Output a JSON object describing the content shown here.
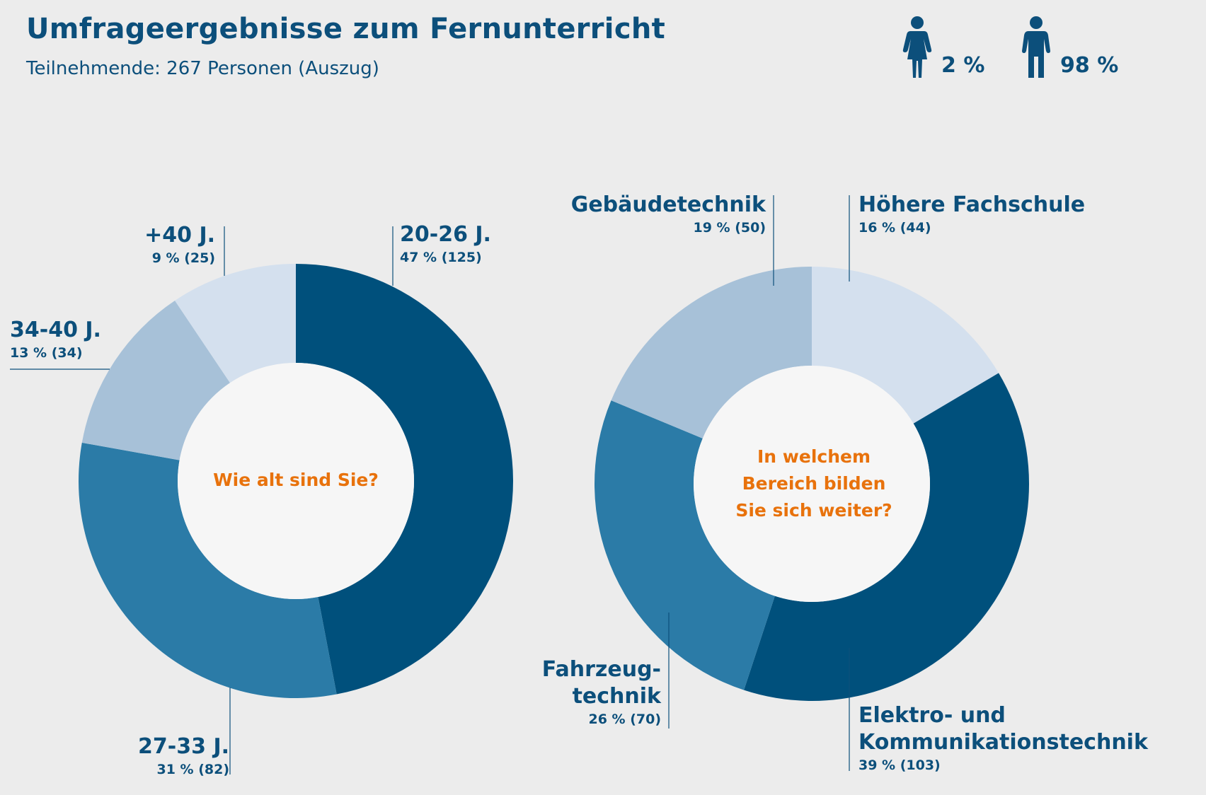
{
  "header": {
    "title": "Umfrageergebnisse zum Fernunterricht",
    "subtitle": "Teilnehmende: 267 Personen (Auszug)"
  },
  "gender": {
    "female": {
      "icon": "female-person-icon",
      "value": "2 %"
    },
    "male": {
      "icon": "male-person-icon",
      "value": "98 %"
    }
  },
  "colors": {
    "dark": "#00507c",
    "medium": "#2b7ba7",
    "light": "#a7c1d8",
    "lightest": "#d4e0ee",
    "center": "#f6f6f6",
    "accent": "#e8720c",
    "text": "#0c4f7b"
  },
  "chart_data": [
    {
      "type": "pie",
      "question": "Wie alt sind Sie?",
      "slices": [
        {
          "label": "20-26 J.",
          "percent": 47,
          "count": 125,
          "value_text": "47 % (125)"
        },
        {
          "label": "27-33 J.",
          "percent": 31,
          "count": 82,
          "value_text": "31 % (82)"
        },
        {
          "label": "34-40 J.",
          "percent": 13,
          "count": 34,
          "value_text": "13 % (34)"
        },
        {
          "label": "+40 J.",
          "percent": 9,
          "count": 25,
          "value_text": "9 % (25)"
        }
      ]
    },
    {
      "type": "pie",
      "question_lines": [
        "In welchem",
        "Bereich bilden",
        "Sie sich weiter?"
      ],
      "slices": [
        {
          "label": "Höhere Fachschule",
          "percent": 16,
          "count": 44,
          "value_text": "16 % (44)"
        },
        {
          "label_lines": [
            "Elektro- und",
            "Kommunikationstechnik"
          ],
          "percent": 39,
          "count": 103,
          "value_text": "39 % (103)"
        },
        {
          "label_lines": [
            "Fahrzeug-",
            "technik"
          ],
          "percent": 26,
          "count": 70,
          "value_text": "26 % (70)"
        },
        {
          "label": "Gebäudetechnik",
          "percent": 19,
          "count": 50,
          "value_text": "19 % (50)"
        }
      ]
    }
  ]
}
